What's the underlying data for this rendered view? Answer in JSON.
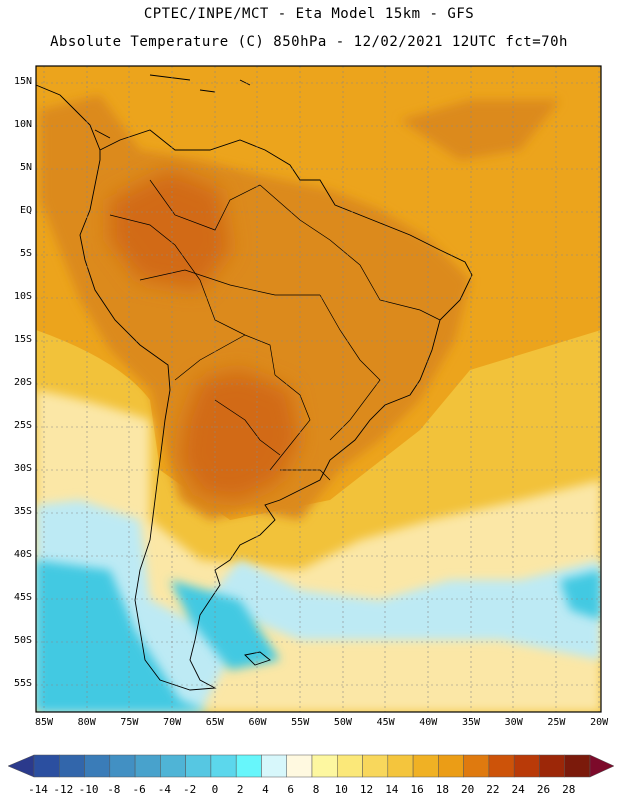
{
  "header": {
    "title_line1": "CPTEC/INPE/MCT -  Eta Model 15km - GFS",
    "title_line2": "Absolute Temperature (C) 850hPa - 12/02/2021 12UTC fct=70h"
  },
  "map": {
    "lat_labels": [
      "15N",
      "10N",
      "5N",
      "EQ",
      "5S",
      "10S",
      "15S",
      "20S",
      "25S",
      "30S",
      "35S",
      "40S",
      "45S",
      "50S",
      "55S"
    ],
    "lon_labels": [
      "85W",
      "80W",
      "75W",
      "70W",
      "65W",
      "60W",
      "55W",
      "50W",
      "45W",
      "40W",
      "35W",
      "30W",
      "25W",
      "20W"
    ],
    "field": "Absolute Temperature (C) 850hPa",
    "colors": {
      "warmest_land": "#d26a18",
      "warm_land": "#dc8a1e",
      "tropical_ocean": "#eca41c",
      "subtropical_ocean": "#f2c23a",
      "cool_ocean": "#fbe7a6",
      "cold_ocean": "#bdeaf4",
      "very_cold": "#42c9e2"
    }
  },
  "colorbar": {
    "labels": [
      "-14",
      "-12",
      "-10",
      "-8",
      "-6",
      "-4",
      "-2",
      "0",
      "2",
      "4",
      "6",
      "8",
      "10",
      "12",
      "14",
      "16",
      "18",
      "20",
      "22",
      "24",
      "26",
      "28"
    ],
    "colors": [
      "#2b4fa0",
      "#3266ab",
      "#3a7cb8",
      "#4290c3",
      "#48a2cc",
      "#4fb4d6",
      "#56c7e2",
      "#5cd7ec",
      "#67f6fb",
      "#d7f7fb",
      "#fff9e0",
      "#fdf7a0",
      "#fbe879",
      "#f8d75c",
      "#f4c53d",
      "#f0b124",
      "#eb9d16",
      "#df7a0f",
      "#cd5309",
      "#b93a08",
      "#9c2708",
      "#7b1a0b"
    ],
    "low_end_color": "#2b3a8c",
    "high_end_color": "#7c0a2a"
  }
}
